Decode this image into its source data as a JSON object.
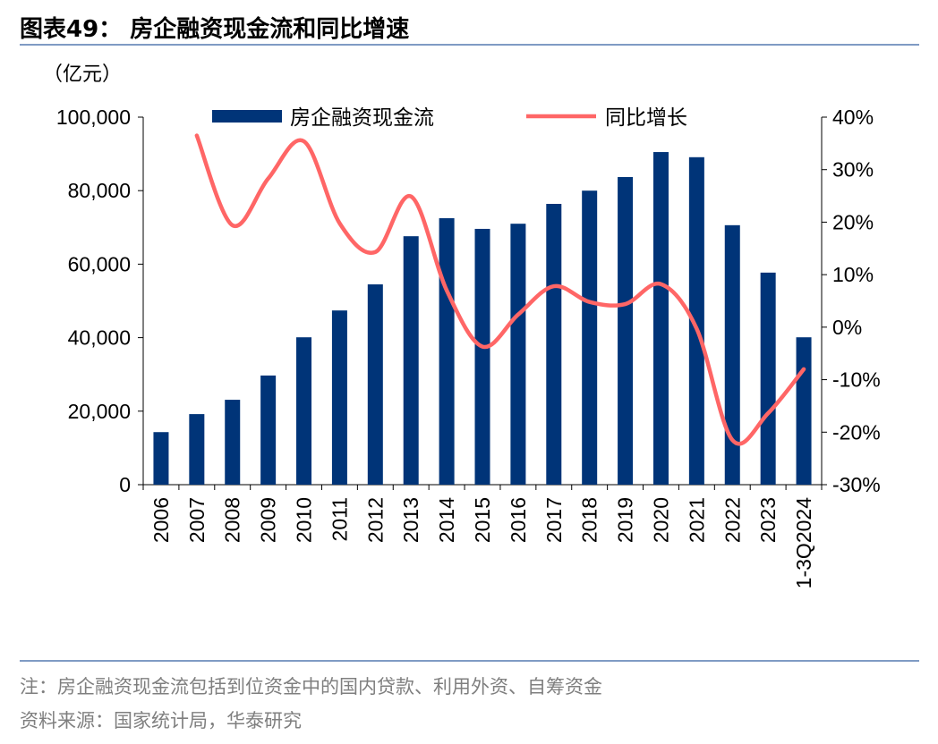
{
  "title": "图表49：  房企融资现金流和同比增速",
  "unit_label": "（亿元）",
  "footnote": "注：房企融资现金流包括到位资金中的国内贷款、利用外资、自筹资金",
  "source": "资料来源：国家统计局，华泰研究",
  "chart_data": {
    "type": "bar+line",
    "categories": [
      "2006",
      "2007",
      "2008",
      "2009",
      "2010",
      "2011",
      "2012",
      "2013",
      "2014",
      "2015",
      "2016",
      "2017",
      "2018",
      "2019",
      "2020",
      "2021",
      "2022",
      "2023",
      "1-3Q2024"
    ],
    "series": [
      {
        "name": "房企融资现金流",
        "type": "bar",
        "axis": "left",
        "color": "#003478",
        "values": [
          14300,
          19200,
          23100,
          29700,
          40100,
          47400,
          54500,
          67600,
          72500,
          69600,
          71000,
          76400,
          80000,
          83700,
          90500,
          89100,
          70600,
          57700,
          40100
        ]
      },
      {
        "name": "同比增长",
        "type": "line",
        "axis": "right",
        "color": "#ff6666",
        "values": [
          null,
          36.5,
          19.4,
          28.3,
          35.4,
          19.8,
          14.3,
          24.9,
          7.0,
          -3.7,
          2.4,
          7.8,
          4.8,
          4.4,
          8.2,
          -0.3,
          -21.5,
          -16.4,
          -8.0
        ]
      }
    ],
    "left_axis": {
      "ylim": [
        0,
        100000
      ],
      "ticks": [
        "0",
        "20,000",
        "40,000",
        "60,000",
        "80,000",
        "100,000"
      ]
    },
    "right_axis": {
      "ylim": [
        -30,
        40
      ],
      "ticks": [
        "-30%",
        "-20%",
        "-10%",
        "0%",
        "10%",
        "20%",
        "30%",
        "40%"
      ]
    },
    "legend": "top",
    "grid": false
  }
}
